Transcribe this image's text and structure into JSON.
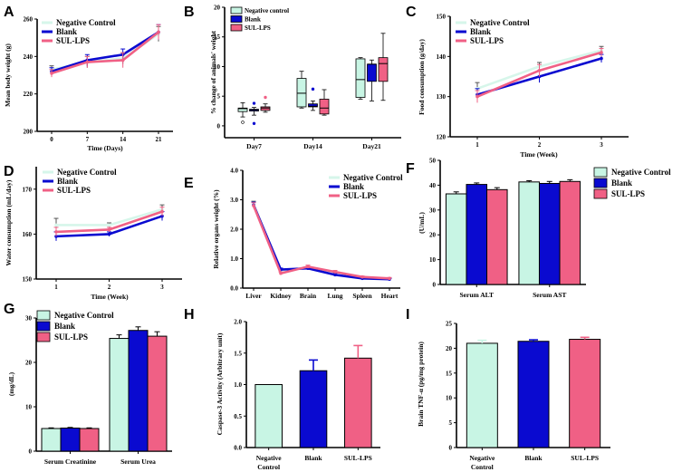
{
  "colors": {
    "negative": "#c8f5e4",
    "negative_line": "#d6f6ea",
    "blank": "#0a0ad0",
    "sul": "#f06085",
    "black": "#000000"
  },
  "chart_data": [
    {
      "panel": "A",
      "type": "line",
      "title": "",
      "xlabel": "Time (Days)",
      "ylabel": "Mean body weight (g)",
      "x": [
        0,
        7,
        14,
        21
      ],
      "ylim": [
        200,
        260
      ],
      "yticks": [
        200,
        220,
        240,
        260
      ],
      "legend_position": "top-left",
      "series": [
        {
          "name": "Negative Control",
          "color_key": "negative_line",
          "values": [
            233,
            237,
            239,
            252
          ],
          "err": [
            2,
            3,
            3,
            4
          ]
        },
        {
          "name": "Blank",
          "color_key": "blank",
          "values": [
            232,
            238,
            241,
            253
          ],
          "err": [
            2,
            3,
            3,
            4
          ]
        },
        {
          "name": "SUL-LPS",
          "color_key": "sul",
          "values": [
            231,
            237,
            238,
            253
          ],
          "err": [
            2,
            3,
            4,
            4
          ]
        }
      ]
    },
    {
      "panel": "B",
      "type": "box",
      "xlabel": "",
      "ylabel": "% change of animals' weight",
      "categories": [
        "Day7",
        "Day14",
        "Day21"
      ],
      "ylim": [
        -2,
        20
      ],
      "yticks": [
        0,
        5,
        10,
        15,
        20
      ],
      "legend_position": "top-left",
      "series": [
        {
          "name": "Negative control",
          "color_key": "negative",
          "boxes": [
            [
              1.5,
              2.4,
              2.9,
              3.0,
              3.9
            ],
            [
              3.0,
              3.2,
              5.5,
              8.0,
              9.2
            ],
            [
              4.5,
              4.8,
              7.8,
              11.3,
              11.5
            ]
          ],
          "outliers": [
            [
              0.6
            ],
            [],
            []
          ]
        },
        {
          "name": "Blank",
          "color_key": "blank",
          "boxes": [
            [
              1.8,
              2.5,
              2.7,
              2.8,
              3.1
            ],
            [
              2.6,
              3.2,
              3.3,
              3.7,
              4.2
            ],
            [
              4.2,
              7.5,
              10.4,
              10.4,
              11.1
            ]
          ],
          "outliers": [
            [
              0.4,
              3.8
            ],
            [
              6.2
            ],
            []
          ]
        },
        {
          "name": "SUL-LPS",
          "color_key": "sul",
          "boxes": [
            [
              2.3,
              2.6,
              3.0,
              3.2,
              3.7
            ],
            [
              1.8,
              2.0,
              3.0,
              4.5,
              6.1
            ],
            [
              4.3,
              7.5,
              10.5,
              11.5,
              15.6
            ]
          ],
          "outliers": [
            [
              4.8
            ],
            [],
            []
          ]
        }
      ]
    },
    {
      "panel": "C",
      "type": "line",
      "xlabel": "Time (Week)",
      "ylabel": "Food consumption (g/day)",
      "x": [
        1,
        2,
        3
      ],
      "ylim": [
        120,
        150
      ],
      "yticks": [
        120,
        130,
        140,
        150
      ],
      "legend_position": "top-left",
      "series": [
        {
          "name": "Negative Control",
          "color_key": "negative_line",
          "values": [
            132,
            137.5,
            141.5
          ],
          "err": [
            1.5,
            1,
            1
          ]
        },
        {
          "name": "Blank",
          "color_key": "blank",
          "values": [
            130.5,
            135,
            139.5
          ],
          "err": [
            1.5,
            1.5,
            1
          ]
        },
        {
          "name": "SUL-LPS",
          "color_key": "sul",
          "values": [
            130,
            136.5,
            141
          ],
          "err": [
            1.5,
            1.5,
            1
          ]
        }
      ]
    },
    {
      "panel": "D",
      "type": "line",
      "xlabel": "Time (Week)",
      "ylabel": "Water consumption (mL/day)",
      "x": [
        1,
        2,
        3
      ],
      "ylim": [
        150,
        175
      ],
      "yticks": [
        150,
        160,
        170
      ],
      "legend_position": "top-left",
      "series": [
        {
          "name": "Negative Control",
          "color_key": "negative_line",
          "values": [
            162,
            162,
            165.5
          ],
          "err": [
            1.5,
            0.5,
            1
          ]
        },
        {
          "name": "Blank",
          "color_key": "blank",
          "values": [
            159.5,
            160,
            164
          ],
          "err": [
            1,
            0.5,
            1
          ]
        },
        {
          "name": "SUL-LPS",
          "color_key": "sul",
          "values": [
            160.5,
            161,
            165
          ],
          "err": [
            1,
            0.5,
            1
          ]
        }
      ]
    },
    {
      "panel": "E",
      "type": "line",
      "xlabel": "",
      "ylabel": "Relative organs weight (%)",
      "categories": [
        "Liver",
        "Kidney",
        "Brain",
        "Lung",
        "Spleen",
        "Heart"
      ],
      "ylim": [
        0,
        4
      ],
      "yticks": [
        0.0,
        1.0,
        2.0,
        3.0,
        4.0
      ],
      "legend_position": "top-right",
      "series": [
        {
          "name": "Negative Control",
          "color_key": "negative_line",
          "values": [
            2.85,
            0.6,
            0.68,
            0.55,
            0.35,
            0.32
          ],
          "err": [
            0.1,
            0.05,
            0.05,
            0.05,
            0.03,
            0.03
          ]
        },
        {
          "name": "Blank",
          "color_key": "blank",
          "values": [
            2.82,
            0.63,
            0.67,
            0.45,
            0.33,
            0.3
          ],
          "err": [
            0.1,
            0.05,
            0.05,
            0.05,
            0.03,
            0.03
          ]
        },
        {
          "name": "SUL-LPS",
          "color_key": "sul",
          "values": [
            2.8,
            0.5,
            0.73,
            0.55,
            0.38,
            0.33
          ],
          "err": [
            0.1,
            0.05,
            0.05,
            0.05,
            0.03,
            0.03
          ]
        }
      ]
    },
    {
      "panel": "F",
      "type": "bar",
      "xlabel": "",
      "ylabel": "(U/mL)",
      "categories": [
        "Serum ALT",
        "Serum AST"
      ],
      "ylim": [
        0,
        50
      ],
      "yticks": [
        0,
        10,
        20,
        30,
        40,
        50
      ],
      "legend_position": "top-right",
      "series": [
        {
          "name": "Negative Control",
          "color_key": "negative",
          "values": [
            36.5,
            41.3
          ],
          "err": [
            0.8,
            0.5
          ]
        },
        {
          "name": "Blank",
          "color_key": "blank",
          "values": [
            40.3,
            40.7
          ],
          "err": [
            0.6,
            0.8
          ]
        },
        {
          "name": "SUL-LPS",
          "color_key": "sul",
          "values": [
            38.2,
            41.5
          ],
          "err": [
            0.8,
            0.7
          ]
        }
      ]
    },
    {
      "panel": "G",
      "type": "bar",
      "xlabel": "",
      "ylabel": "(mg/dL)",
      "categories": [
        "Serum Creatinine",
        "Serum Urea"
      ],
      "ylim": [
        0,
        30
      ],
      "yticks": [
        0,
        10,
        20,
        30
      ],
      "legend_position": "top-left",
      "series": [
        {
          "name": "Negative Control",
          "color_key": "negative",
          "values": [
            5.1,
            25.4
          ],
          "err": [
            0.15,
            0.8
          ]
        },
        {
          "name": "Blank",
          "color_key": "blank",
          "values": [
            5.2,
            27.2
          ],
          "err": [
            0.15,
            0.8
          ]
        },
        {
          "name": "SUL-LPS",
          "color_key": "sul",
          "values": [
            5.1,
            25.9
          ],
          "err": [
            0.15,
            1.0
          ]
        }
      ]
    },
    {
      "panel": "H",
      "type": "bar",
      "xlabel": "",
      "ylabel": "Caspase-3 Activity (Arbitrary unit)",
      "categories": [
        "Negative Control",
        "Blank",
        "SUL-LPS"
      ],
      "ylim": [
        0,
        2
      ],
      "yticks": [
        0.0,
        0.5,
        1.0,
        1.5,
        2.0
      ],
      "series": [
        {
          "name": "Caspase-3",
          "color_keys": [
            "negative",
            "blank",
            "sul"
          ],
          "values": [
            1.0,
            1.22,
            1.42
          ],
          "err": [
            0,
            0.17,
            0.2
          ]
        }
      ]
    },
    {
      "panel": "I",
      "type": "bar",
      "xlabel": "",
      "ylabel": "Brain TNF-α (pg/mg protein)",
      "categories": [
        "Negative Control",
        "Blank",
        "SUL-LPS"
      ],
      "ylim": [
        0,
        25
      ],
      "yticks": [
        0,
        5,
        10,
        15,
        20,
        25
      ],
      "series": [
        {
          "name": "TNF-α",
          "color_keys": [
            "negative",
            "blank",
            "sul"
          ],
          "values": [
            21.0,
            21.4,
            21.8
          ],
          "err": [
            0.6,
            0.3,
            0.4
          ]
        }
      ]
    }
  ]
}
